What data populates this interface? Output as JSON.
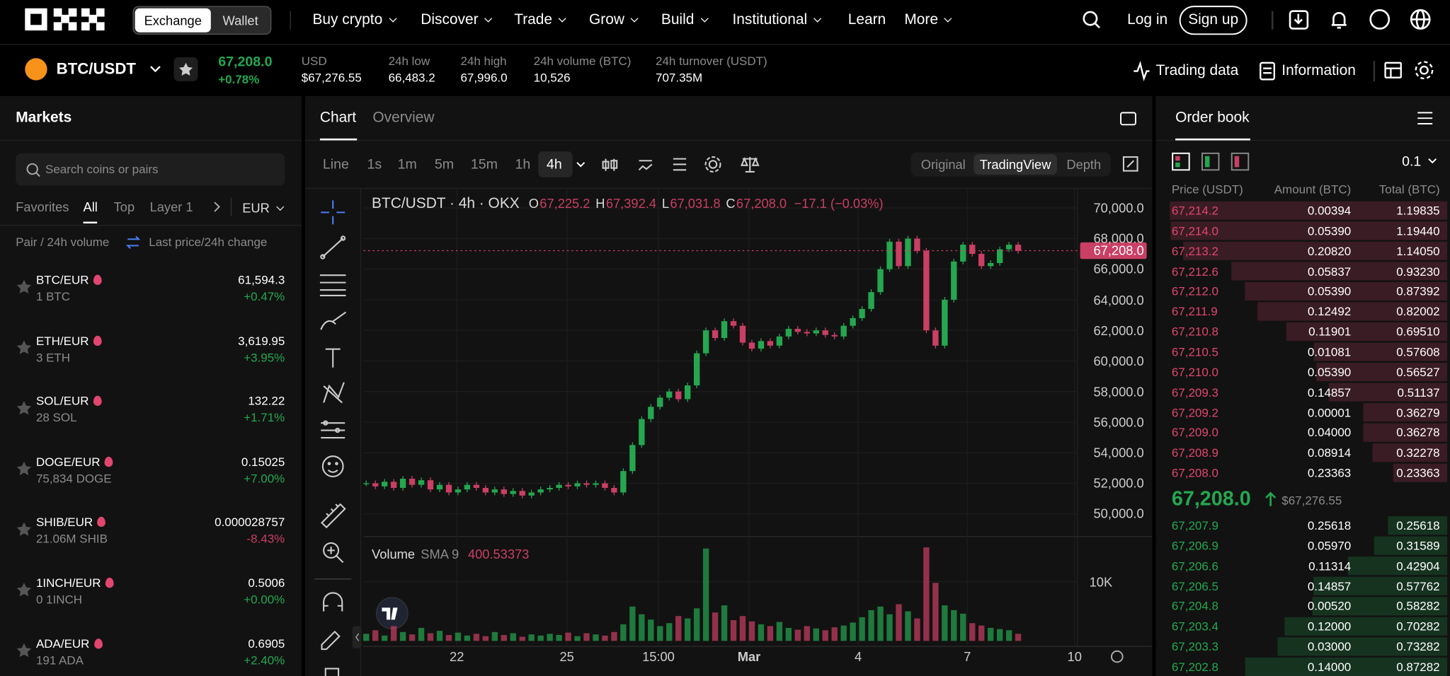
{
  "nav": {
    "exchange": "Exchange",
    "wallet": "Wallet",
    "items": [
      "Buy crypto",
      "Discover",
      "Trade",
      "Grow",
      "Build",
      "Institutional",
      "Learn",
      "More"
    ],
    "login": "Log in",
    "signup": "Sign up"
  },
  "ticker": {
    "pair": "BTC/USDT",
    "price": "67,208.0",
    "change": "+0.78%",
    "stats": [
      {
        "label": "USD",
        "value": "$67,276.55"
      },
      {
        "label": "24h low",
        "value": "66,483.2"
      },
      {
        "label": "24h high",
        "value": "67,996.0"
      },
      {
        "label": "24h volume (BTC)",
        "value": "10,526"
      },
      {
        "label": "24h turnover (USDT)",
        "value": "707.35M"
      }
    ],
    "trading_data": "Trading data",
    "information": "Information"
  },
  "markets": {
    "title": "Markets",
    "search": "Search coins or pairs",
    "tabs": [
      "Favorites",
      "All",
      "Top",
      "Layer 1"
    ],
    "currency": "EUR",
    "col1": "Pair / 24h volume",
    "col2": "Last price/24h change",
    "rows": [
      {
        "pair": "BTC/EUR",
        "volume": "1 BTC",
        "price": "61,594.3",
        "change": "+0.47%"
      },
      {
        "pair": "ETH/EUR",
        "volume": "3 ETH",
        "price": "3,619.95",
        "change": "+3.95%"
      },
      {
        "pair": "SOL/EUR",
        "volume": "28 SOL",
        "price": "132.22",
        "change": "+1.71%"
      },
      {
        "pair": "DOGE/EUR",
        "volume": "75,834 DOGE",
        "price": "0.15025",
        "change": "+7.00%"
      },
      {
        "pair": "SHIB/EUR",
        "volume": "21.06M SHIB",
        "price": "0.000028757",
        "change": "-8.43%"
      },
      {
        "pair": "1INCH/EUR",
        "volume": "0 1INCH",
        "price": "0.5006",
        "change": "+0.00%"
      },
      {
        "pair": "ADA/EUR",
        "volume": "191 ADA",
        "price": "0.6905",
        "change": "+2.40%"
      }
    ]
  },
  "chart_data": {
    "type": "candlestick",
    "tabs": [
      "Chart",
      "Overview"
    ],
    "intervals": [
      "Line",
      "1s",
      "1m",
      "5m",
      "15m",
      "1h",
      "4h"
    ],
    "views": [
      "Original",
      "TradingView",
      "Depth"
    ],
    "legend": {
      "title": "BTC/USDT · 4h · OKX",
      "o_label": "O",
      "o": "67,225.2",
      "h_label": "H",
      "h": "67,392.4",
      "l_label": "L",
      "l": "67,031.8",
      "c_label": "C",
      "c": "67,208.0",
      "change": "−17.1 (−0.03%)"
    },
    "volume_label": "Volume",
    "sma": "SMA 9",
    "sma_value": "400.53373",
    "up_color": "#25a750",
    "down_color": "#ca3f64",
    "current": {
      "value": 67208,
      "label": "67,208.0"
    },
    "ylim": [
      48700,
      71100
    ],
    "yticks": [
      {
        "value": 50000,
        "label": "50,000.0"
      },
      {
        "value": 52000,
        "label": "52,000.0"
      },
      {
        "value": 54000,
        "label": "54,000.0"
      },
      {
        "value": 56000,
        "label": "56,000.0"
      },
      {
        "value": 58000,
        "label": "58,000.0"
      },
      {
        "value": 60000,
        "label": "60,000.0"
      },
      {
        "value": 62000,
        "label": "62,000.0"
      },
      {
        "value": 64000,
        "label": "64,000.0"
      },
      {
        "value": 66000,
        "label": "66,000.0"
      },
      {
        "value": 68000,
        "label": "68,000.0"
      },
      {
        "value": 70000,
        "label": "70,000.0"
      }
    ],
    "x_labels": [
      "22",
      "25",
      "15:00",
      "Mar",
      "4",
      "7",
      "10"
    ],
    "closes": [
      52000,
      51800,
      52100,
      51700,
      52300,
      51900,
      52200,
      51600,
      51900,
      51400,
      51600,
      51900,
      51700,
      51400,
      51600,
      51300,
      51500,
      51200,
      51400,
      51600,
      51700,
      51900,
      51800,
      52000,
      51900,
      52000,
      51700,
      51400,
      52800,
      54500,
      56200,
      57000,
      57600,
      58000,
      57500,
      58400,
      60500,
      62000,
      61500,
      62600,
      62300,
      61200,
      60800,
      61300,
      61000,
      61600,
      62100,
      61900,
      61800,
      62000,
      61700,
      61600,
      62300,
      62800,
      63400,
      64500,
      66000,
      67800,
      66200,
      68000,
      67200,
      62000,
      61000,
      64000,
      66500,
      67600,
      67000,
      66200,
      66400,
      67300,
      67600,
      67200
    ],
    "volume_ylim": [
      0,
      17000
    ],
    "volume_ticks": [
      {
        "value": 10000,
        "label": "10K"
      }
    ],
    "volumes": [
      1200,
      1800,
      900,
      2500,
      1500,
      1100,
      2200,
      1300,
      1700,
      1000,
      1400,
      900,
      1200,
      800,
      1500,
      1000,
      1300,
      700,
      1100,
      900,
      1200,
      1000,
      1400,
      800,
      1300,
      1100,
      900,
      1500,
      2800,
      5800,
      4500,
      3600,
      2500,
      3000,
      4200,
      3800,
      5500,
      15600,
      4800,
      6000,
      3500,
      4200,
      3300,
      2800,
      2500,
      3200,
      2200,
      1900,
      2500,
      2100,
      1800,
      2300,
      2600,
      3100,
      4000,
      5200,
      5800,
      4500,
      6200,
      5000,
      3800,
      15800,
      9800,
      6000,
      5200,
      4600,
      3000,
      2600,
      2200,
      2000,
      1800,
      1200
    ]
  },
  "order_book": {
    "title": "Order book",
    "step": "0.1",
    "headers": [
      "Price (USDT)",
      "Amount (BTC)",
      "Total (BTC)"
    ],
    "asks": [
      [
        "67,214.2",
        "0.00394",
        "1.19835"
      ],
      [
        "67,214.0",
        "0.05390",
        "1.19440"
      ],
      [
        "67,213.2",
        "0.20820",
        "1.14050"
      ],
      [
        "67,212.6",
        "0.05837",
        "0.93230"
      ],
      [
        "67,212.0",
        "0.05390",
        "0.87392"
      ],
      [
        "67,211.9",
        "0.12492",
        "0.82002"
      ],
      [
        "67,210.8",
        "0.11901",
        "0.69510"
      ],
      [
        "67,210.5",
        "0.01081",
        "0.57608"
      ],
      [
        "67,210.0",
        "0.05390",
        "0.56527"
      ],
      [
        "67,209.3",
        "0.14857",
        "0.51137"
      ],
      [
        "67,209.2",
        "0.00001",
        "0.36279"
      ],
      [
        "67,209.0",
        "0.04000",
        "0.36278"
      ],
      [
        "67,208.9",
        "0.08914",
        "0.32278"
      ],
      [
        "67,208.0",
        "0.23363",
        "0.23363"
      ]
    ],
    "mid": "67,208.0",
    "mid_usd": "$67,276.55",
    "bids": [
      [
        "67,207.9",
        "0.25618",
        "0.25618"
      ],
      [
        "67,206.9",
        "0.05970",
        "0.31589"
      ],
      [
        "67,206.6",
        "0.11314",
        "0.42904"
      ],
      [
        "67,206.5",
        "0.14857",
        "0.57762"
      ],
      [
        "67,204.8",
        "0.00520",
        "0.58282"
      ],
      [
        "67,203.4",
        "0.12000",
        "0.70282"
      ],
      [
        "67,203.3",
        "0.03000",
        "0.73282"
      ],
      [
        "67,202.8",
        "0.14000",
        "0.87282"
      ]
    ]
  }
}
